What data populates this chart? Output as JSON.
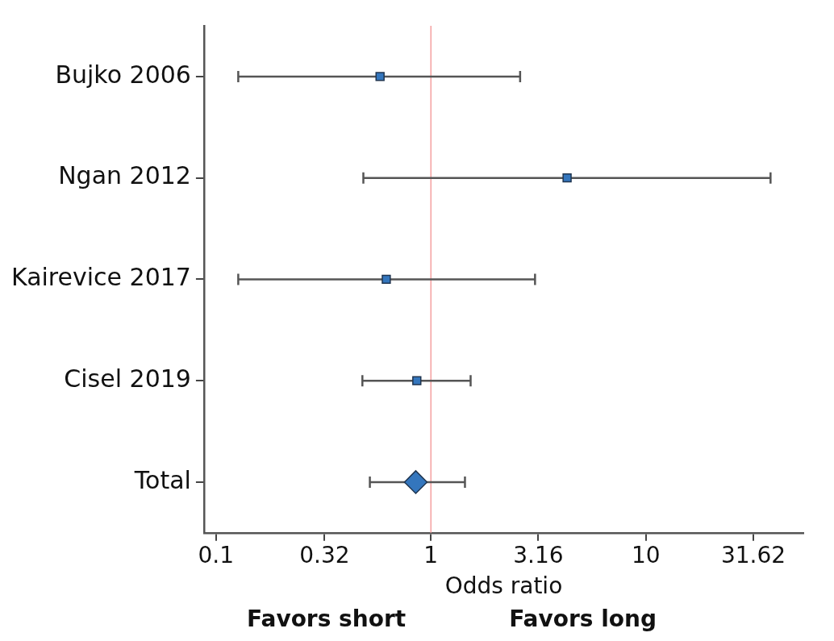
{
  "chart_data": {
    "type": "scatter",
    "orientation": "horizontal",
    "xlabel": "Odds ratio",
    "categories": [
      "Bujko 2006",
      "Ngan 2012",
      "Kairevice 2017",
      "Cisel 2019",
      "Total"
    ],
    "series": [
      {
        "color": "#3476bd",
        "marker": "square",
        "values": [
          0.58,
          4.3,
          0.62,
          0.86,
          null
        ],
        "errors": [
          [
            0.127,
            2.6
          ],
          [
            0.485,
            38
          ],
          [
            0.127,
            3.05
          ],
          [
            0.48,
            1.53
          ],
          null
        ]
      },
      {
        "color": "#3476bd",
        "marker": "diamond",
        "values": [
          null,
          null,
          null,
          null,
          0.85
        ],
        "errors": [
          null,
          null,
          null,
          null,
          [
            0.52,
            1.44
          ]
        ]
      }
    ],
    "log": "x",
    "xlim": [
      0.088,
      54
    ],
    "xticks": [
      0.1,
      0.32,
      1,
      3.16,
      10,
      31.62
    ],
    "grid": false,
    "legend": false,
    "ref_lines": [
      {
        "axis": "x",
        "value": 1,
        "color": "#f4a0a0"
      }
    ],
    "annotations": [
      "Favors short",
      "Favors long"
    ]
  }
}
